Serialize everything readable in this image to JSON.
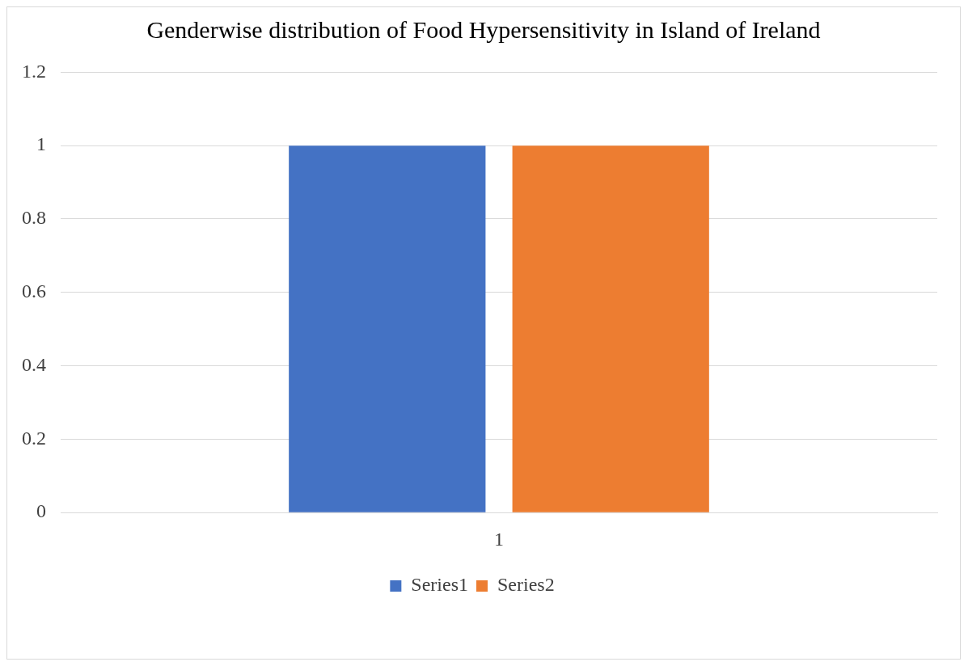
{
  "chart_data": {
    "type": "bar",
    "title": "Genderwise distribution of Food Hypersensitivity in Island of Ireland",
    "categories": [
      "1"
    ],
    "series": [
      {
        "name": "Series1",
        "color": "#4472c4",
        "values": [
          1
        ]
      },
      {
        "name": "Series2",
        "color": "#ed7d31",
        "values": [
          1
        ]
      }
    ],
    "ylim": [
      0,
      1.2
    ],
    "yticks": [
      0,
      0.2,
      0.4,
      0.6,
      0.8,
      1,
      1.2
    ],
    "grid": "y",
    "legend": "bottom"
  }
}
